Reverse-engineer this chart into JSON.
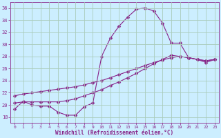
{
  "xlabel": "Windchill (Refroidissement éolien,°C)",
  "background_color": "#cceeff",
  "line_color": "#882288",
  "grid_color": "#aaccbb",
  "xlim": [
    -0.5,
    23.5
  ],
  "ylim": [
    17,
    37
  ],
  "yticks": [
    18,
    20,
    22,
    24,
    26,
    28,
    30,
    32,
    34,
    36
  ],
  "xticks": [
    0,
    1,
    2,
    3,
    4,
    5,
    6,
    7,
    8,
    9,
    10,
    11,
    12,
    13,
    14,
    15,
    16,
    17,
    18,
    19,
    20,
    21,
    22,
    23
  ],
  "line1_x": [
    0,
    1,
    2,
    3,
    4,
    5,
    6,
    7,
    8,
    9,
    10,
    11,
    12,
    13,
    14,
    15,
    16,
    17,
    18,
    19,
    20,
    21,
    22,
    23
  ],
  "line1_y": [
    19.3,
    20.6,
    20.0,
    19.8,
    19.8,
    18.8,
    18.3,
    18.3,
    19.7,
    20.3,
    28.0,
    31.0,
    33.0,
    34.5,
    35.8,
    36.0,
    35.5,
    33.5,
    30.2,
    30.2,
    27.8,
    27.5,
    27.0,
    27.5
  ],
  "line2_x": [
    0,
    1,
    2,
    3,
    4,
    5,
    6,
    7,
    8,
    9,
    10,
    11,
    12,
    13,
    14,
    15,
    16,
    17,
    18,
    19,
    20,
    21,
    22,
    23
  ],
  "line2_y": [
    20.3,
    20.5,
    20.5,
    20.5,
    20.5,
    20.5,
    20.7,
    21.0,
    21.5,
    22.0,
    22.5,
    23.2,
    23.8,
    24.5,
    25.2,
    26.0,
    26.8,
    27.5,
    28.2,
    28.0,
    27.8,
    27.5,
    27.3,
    27.5
  ],
  "line3_x": [
    0,
    1,
    2,
    3,
    4,
    5,
    6,
    7,
    8,
    9,
    10,
    11,
    12,
    13,
    14,
    15,
    16,
    17,
    18,
    19,
    20,
    21,
    22,
    23
  ],
  "line3_y": [
    21.5,
    21.8,
    22.0,
    22.2,
    22.4,
    22.6,
    22.8,
    23.0,
    23.3,
    23.7,
    24.0,
    24.5,
    25.0,
    25.5,
    26.0,
    26.5,
    27.0,
    27.4,
    27.8,
    28.0,
    27.8,
    27.5,
    27.3,
    27.5
  ]
}
